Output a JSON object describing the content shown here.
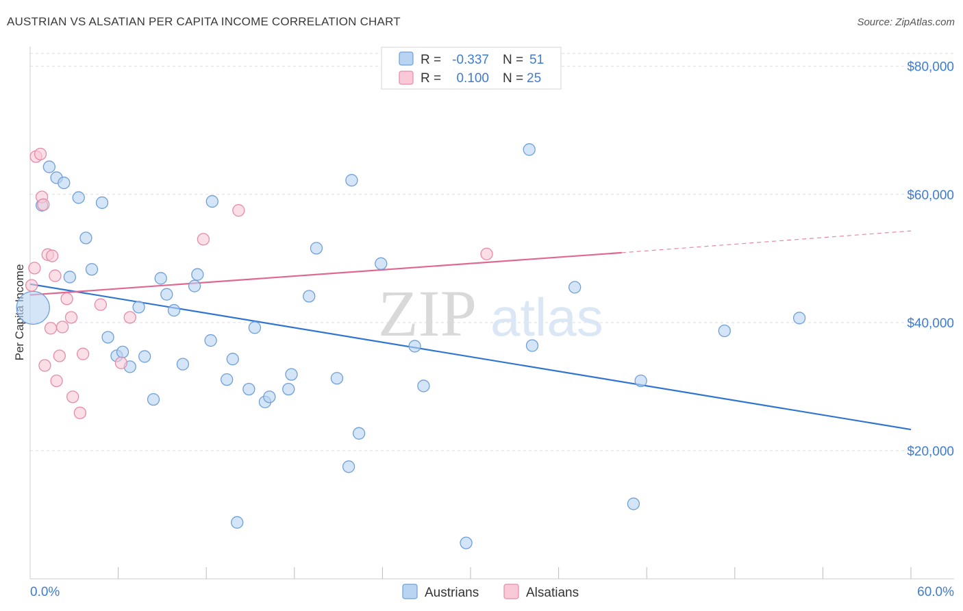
{
  "title": "AUSTRIAN VS ALSATIAN PER CAPITA INCOME CORRELATION CHART",
  "source": "Source: ZipAtlas.com",
  "watermark": {
    "zip": "ZIP",
    "atlas": "atlas"
  },
  "colors": {
    "blue_fill": "#b9d3f3",
    "blue_stroke": "#6f9fd8",
    "blue_line": "#2f74d0",
    "pink_fill": "#f9c9d7",
    "pink_stroke": "#e68aa8",
    "pink_line": "#e0688f",
    "grid": "#dddddd",
    "label": "#3d7bd4"
  },
  "legend_top": [
    {
      "r_label": "R = ",
      "r_value": "-0.337",
      "n_label": "N = ",
      "n_value": "51",
      "series": "blue"
    },
    {
      "r_label": "R = ",
      "r_value": "0.100",
      "n_label": "N = ",
      "n_value": "25",
      "series": "pink"
    }
  ],
  "legend_bottom": [
    {
      "label": "Austrians",
      "series": "blue"
    },
    {
      "label": "Alsatians",
      "series": "pink"
    }
  ],
  "chart_data": {
    "type": "scatter",
    "title": "AUSTRIAN VS ALSATIAN PER CAPITA INCOME CORRELATION CHART",
    "xlabel": "",
    "ylabel": "Per Capita Income",
    "xlim": [
      0,
      60
    ],
    "ylim": [
      0,
      82000
    ],
    "x_tick_labels": [
      {
        "value": 0,
        "label": "0.0%"
      },
      {
        "value": 60,
        "label": "60.0%"
      }
    ],
    "x_minor_ticks": [
      6,
      12,
      18,
      24,
      30,
      36,
      42,
      48,
      54
    ],
    "y_ticks": [
      {
        "value": 20000,
        "label": "$20,000"
      },
      {
        "value": 40000,
        "label": "$40,000"
      },
      {
        "value": 60000,
        "label": "$60,000"
      },
      {
        "value": 80000,
        "label": "$80,000"
      }
    ],
    "series": [
      {
        "name": "Austrians",
        "color": "blue",
        "R": -0.337,
        "N": 51,
        "trend": {
          "x0": 0,
          "y0": 46000,
          "x1": 60,
          "y1": 23300
        },
        "points": [
          {
            "x": 0.2,
            "y": 42300,
            "big": true
          },
          {
            "x": 0.8,
            "y": 58300
          },
          {
            "x": 1.3,
            "y": 64300
          },
          {
            "x": 1.8,
            "y": 62600
          },
          {
            "x": 2.3,
            "y": 61800
          },
          {
            "x": 2.7,
            "y": 47100
          },
          {
            "x": 3.3,
            "y": 59500
          },
          {
            "x": 3.8,
            "y": 53200
          },
          {
            "x": 4.2,
            "y": 48300
          },
          {
            "x": 4.9,
            "y": 58700
          },
          {
            "x": 5.3,
            "y": 37700
          },
          {
            "x": 5.9,
            "y": 34800
          },
          {
            "x": 6.3,
            "y": 35400
          },
          {
            "x": 6.8,
            "y": 33100
          },
          {
            "x": 7.4,
            "y": 42400
          },
          {
            "x": 7.8,
            "y": 34700
          },
          {
            "x": 8.4,
            "y": 28000
          },
          {
            "x": 8.9,
            "y": 46900
          },
          {
            "x": 9.3,
            "y": 44400
          },
          {
            "x": 9.8,
            "y": 41900
          },
          {
            "x": 10.4,
            "y": 33500
          },
          {
            "x": 11.2,
            "y": 45700
          },
          {
            "x": 11.4,
            "y": 47500
          },
          {
            "x": 12.3,
            "y": 37200
          },
          {
            "x": 12.4,
            "y": 58900
          },
          {
            "x": 13.4,
            "y": 31100
          },
          {
            "x": 13.8,
            "y": 34300
          },
          {
            "x": 14.1,
            "y": 8800
          },
          {
            "x": 14.9,
            "y": 29600
          },
          {
            "x": 15.3,
            "y": 39200
          },
          {
            "x": 16.0,
            "y": 27600
          },
          {
            "x": 16.3,
            "y": 28400
          },
          {
            "x": 17.6,
            "y": 29600
          },
          {
            "x": 17.8,
            "y": 31900
          },
          {
            "x": 19.0,
            "y": 44100
          },
          {
            "x": 19.5,
            "y": 51600
          },
          {
            "x": 20.9,
            "y": 31300
          },
          {
            "x": 21.7,
            "y": 17500
          },
          {
            "x": 21.9,
            "y": 62200
          },
          {
            "x": 22.4,
            "y": 22700
          },
          {
            "x": 23.9,
            "y": 49200
          },
          {
            "x": 26.8,
            "y": 30100
          },
          {
            "x": 26.2,
            "y": 36300
          },
          {
            "x": 29.7,
            "y": 5600
          },
          {
            "x": 34.0,
            "y": 67000
          },
          {
            "x": 34.2,
            "y": 36400
          },
          {
            "x": 37.1,
            "y": 45500
          },
          {
            "x": 41.1,
            "y": 11700
          },
          {
            "x": 41.6,
            "y": 30900
          },
          {
            "x": 47.3,
            "y": 38700
          },
          {
            "x": 52.4,
            "y": 40700
          }
        ]
      },
      {
        "name": "Alsatians",
        "color": "pink",
        "R": 0.1,
        "N": 25,
        "trend": {
          "x0": 0,
          "y0": 44300,
          "x1": 40.3,
          "y1": 50900
        },
        "extrapolation": {
          "x0": 40.3,
          "y0": 50900,
          "x1": 60,
          "y1": 54300
        },
        "points": [
          {
            "x": 0.1,
            "y": 45800
          },
          {
            "x": 0.3,
            "y": 48500
          },
          {
            "x": 0.4,
            "y": 65900
          },
          {
            "x": 0.7,
            "y": 66300
          },
          {
            "x": 0.8,
            "y": 59600
          },
          {
            "x": 0.9,
            "y": 58400
          },
          {
            "x": 1.0,
            "y": 33300
          },
          {
            "x": 1.2,
            "y": 50600
          },
          {
            "x": 1.4,
            "y": 39100
          },
          {
            "x": 1.5,
            "y": 50400
          },
          {
            "x": 1.7,
            "y": 47300
          },
          {
            "x": 1.8,
            "y": 30900
          },
          {
            "x": 2.0,
            "y": 34800
          },
          {
            "x": 2.2,
            "y": 39300
          },
          {
            "x": 2.5,
            "y": 43700
          },
          {
            "x": 2.8,
            "y": 40800
          },
          {
            "x": 2.9,
            "y": 28400
          },
          {
            "x": 3.4,
            "y": 25900
          },
          {
            "x": 3.6,
            "y": 35100
          },
          {
            "x": 4.8,
            "y": 42800
          },
          {
            "x": 6.2,
            "y": 33700
          },
          {
            "x": 6.8,
            "y": 40800
          },
          {
            "x": 11.8,
            "y": 53000
          },
          {
            "x": 14.2,
            "y": 57500
          },
          {
            "x": 31.1,
            "y": 50700
          }
        ]
      }
    ]
  }
}
